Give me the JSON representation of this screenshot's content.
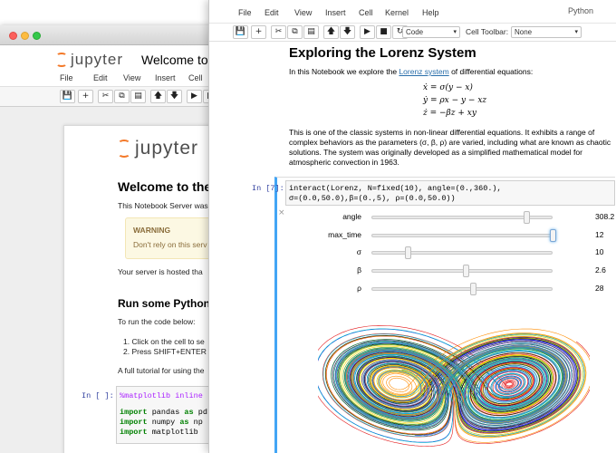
{
  "back_window": {
    "logo_text": "jupyter",
    "title": "Welcome to P",
    "menu": [
      "File",
      "Edit",
      "View",
      "Insert",
      "Cell"
    ],
    "page": {
      "logo_text": "jupyter",
      "heading": "Welcome to the",
      "intro": "This Notebook Server was",
      "warning_title": "WARNING",
      "warning_text": "Don't rely on this serv",
      "hosted": "Your server is hosted tha",
      "section_heading": "Run some Python c",
      "run_text": "To run the code below:",
      "step1": "1. Click on the cell to se",
      "step2": "2. Press SHIFT+ENTER",
      "tutorial": "A full tutorial for using the",
      "prompt": "In [ ]:",
      "code": [
        "%matplotlib inline",
        "import pandas as pd",
        "import numpy as np",
        "import matplotlib"
      ]
    }
  },
  "front_window": {
    "menu": [
      "File",
      "Edit",
      "View",
      "Insert",
      "Cell",
      "Kernel",
      "Help"
    ],
    "kernel": "Python",
    "cell_type": "Code",
    "cell_toolbar_label": "Cell Toolbar:",
    "cell_toolbar_value": "None",
    "heading": "Exploring the Lorenz System",
    "intro_pre": "In this Notebook we explore the ",
    "intro_link": "Lorenz system",
    "intro_post": " of differential equations:",
    "equations": [
      "ẋ = σ(y − x)",
      "ẏ = ρx − y − xz",
      "ż = −βz + xy"
    ],
    "para": [
      "This is one of the classic systems in non-linear differential equations. It exhibits a range of",
      "complex behaviors as the parameters (σ, β, ρ) are varied, including what are known as chaotic",
      "solutions. The system was originally developed as a simplified mathematical model for",
      "atmospheric convection in 1963."
    ],
    "prompt": "In [7]:",
    "code": [
      "interact(Lorenz, N=fixed(10), angle=(0.,360.),",
      "         σ=(0.0,50.0),β=(0.,5), ρ=(0.0,50.0))"
    ],
    "sliders": [
      {
        "label": "angle",
        "value": "308.2",
        "fraction": 0.856
      },
      {
        "label": "max_time",
        "value": "12",
        "fraction": 1.0
      },
      {
        "label": "σ",
        "value": "10",
        "fraction": 0.2
      },
      {
        "label": "β",
        "value": "2.6",
        "fraction": 0.52
      },
      {
        "label": "ρ",
        "value": "28",
        "fraction": 0.56
      }
    ]
  }
}
